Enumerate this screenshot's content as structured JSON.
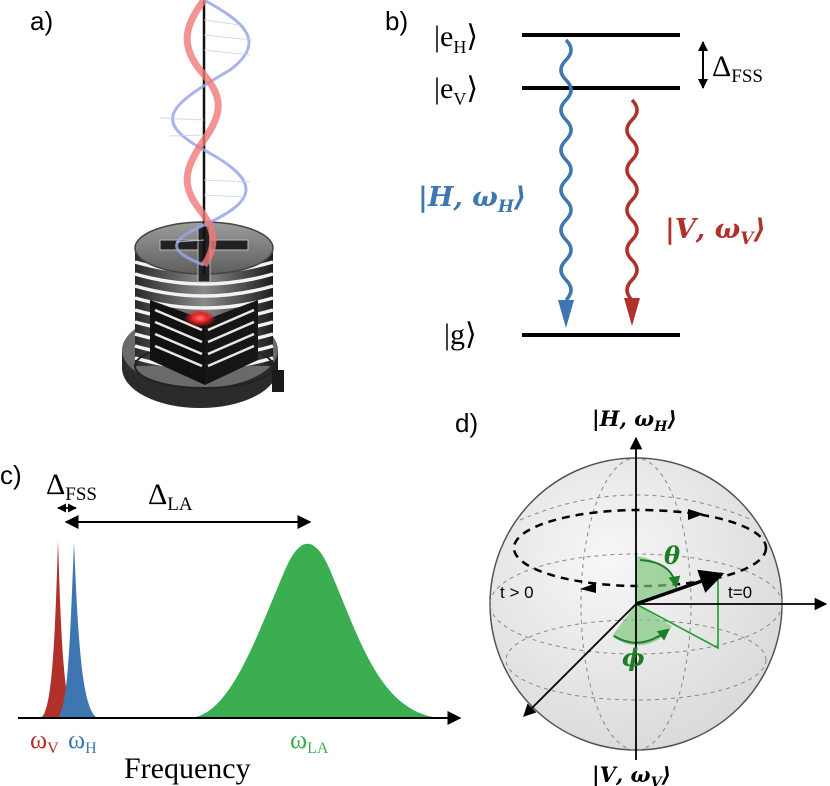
{
  "panels": {
    "a": "a)",
    "b": "b)",
    "c": "c)",
    "d": "d)"
  },
  "level_diagram": {
    "excited_h_sub": "H",
    "excited_v_sub": "V",
    "ground": "g",
    "splitting_sub": "FSS",
    "emission_h": "|𝑯, 𝝎",
    "emission_h_sub": "𝑯",
    "emission_v": "|𝑽, 𝝎",
    "emission_v_sub": "𝑽"
  },
  "spectrum": {
    "fss_sub": "FSS",
    "la_sub": "LA",
    "omega_v_sub": "V",
    "omega_h_sub": "H",
    "omega_la_sub": "LA",
    "xlabel": "Frequency"
  },
  "bloch": {
    "top_state": "|𝑯, 𝝎",
    "top_state_sub": "𝑯",
    "bottom_state": "|𝑽, 𝝎",
    "bottom_state_sub": "𝑽",
    "theta": "θ",
    "phi": "ϕ",
    "t_gt_0": "t > 0",
    "t_eq_0": "t=0"
  },
  "colors": {
    "h_blue": "#3d76b0",
    "v_red": "#b0302a",
    "la_green": "#3cae52",
    "angle_green": "#1e7e28"
  }
}
